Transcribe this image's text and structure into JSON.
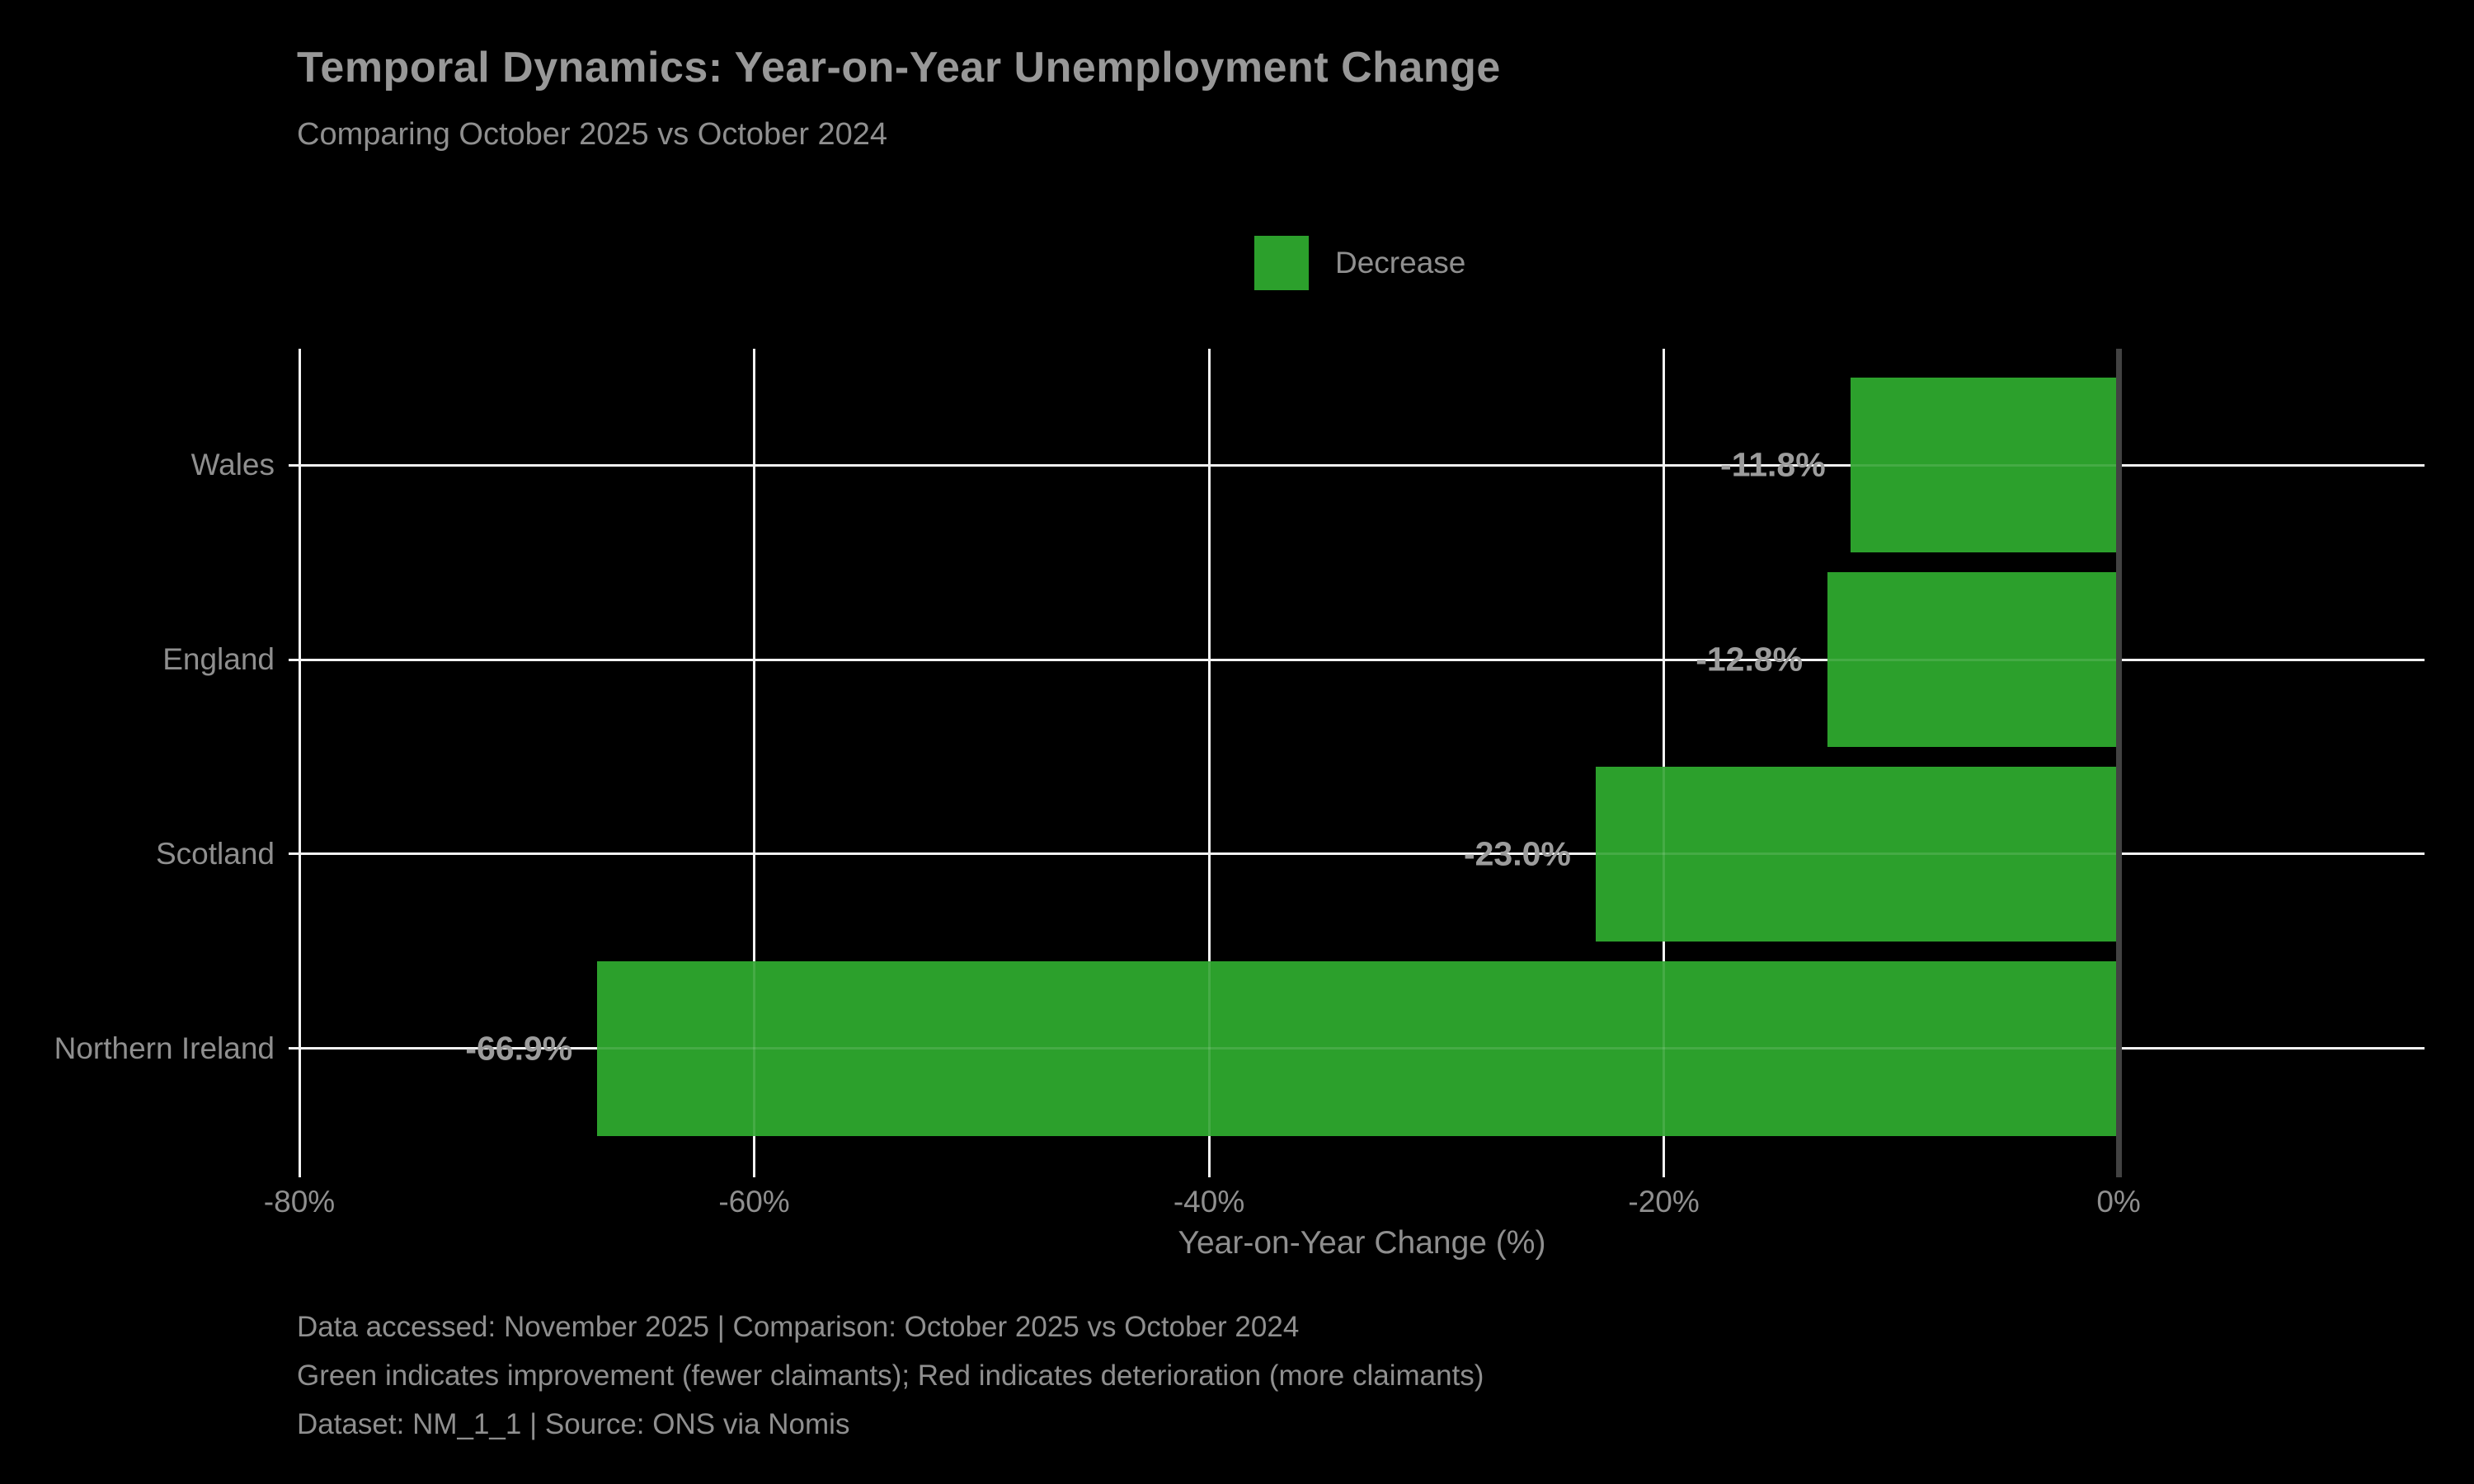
{
  "title": "Temporal Dynamics: Year-on-Year Unemployment Change",
  "subtitle": "Comparing October 2025 vs October 2024",
  "legend": {
    "label": "Decrease",
    "swatch_color": "#2ca02c"
  },
  "chart_data": {
    "type": "bar",
    "orientation": "horizontal",
    "title": "Temporal Dynamics: Year-on-Year Unemployment Change",
    "subtitle": "Comparing October 2025 vs October 2024",
    "categories": [
      "Wales",
      "England",
      "Scotland",
      "Northern Ireland"
    ],
    "values": [
      -11.8,
      -12.8,
      -23.0,
      -66.9
    ],
    "bar_value_labels": [
      "-11.8%",
      "-12.8%",
      "-23.0%",
      "-66.9%"
    ],
    "series_name": "Decrease",
    "xlabel": "Year-on-Year Change (%)",
    "ylabel": "",
    "xlim": [
      -80,
      13.45
    ],
    "x_tick_values": [
      -80,
      -60,
      -40,
      -20,
      0
    ],
    "x_tick_labels": [
      "-80%",
      "-60%",
      "-40%",
      "-20%",
      "0%"
    ],
    "grid": true,
    "legend_position": "top-center",
    "bar_color": "#2ca02c",
    "background_color": "#000000",
    "gridline_color": "#f2f2f2",
    "zero_line_color": "#424242",
    "text_color": "#8f8f8f"
  },
  "footer": {
    "line1": "Data accessed: November 2025 | Comparison: October 2025 vs October 2024",
    "line2": "Green indicates improvement (fewer claimants); Red indicates deterioration (more claimants)",
    "line3": "Dataset: NM_1_1 | Source: ONS via Nomis"
  }
}
